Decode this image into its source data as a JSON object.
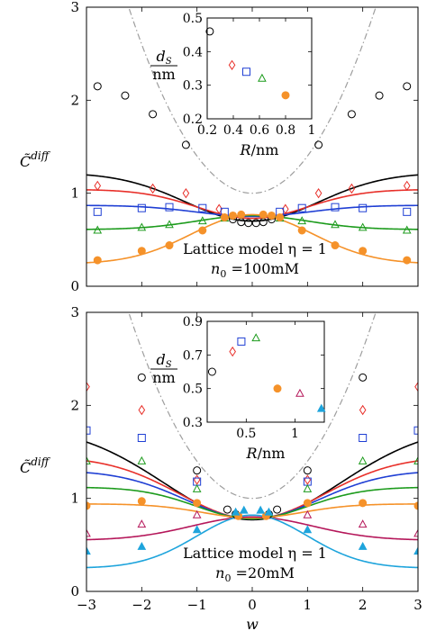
{
  "chart_data": [
    {
      "type": "line",
      "panel": "top",
      "ylabel": "C̃",
      "ylabel_sup": "diff",
      "xlim": [
        -3,
        3
      ],
      "ylim": [
        0,
        3
      ],
      "yticks": [
        "0",
        "1",
        "2",
        "3"
      ],
      "annotation_line1": "Lattice model η = 1",
      "annotation_line2": "n",
      "annotation_line2_sub": "0",
      "annotation_line2_rest": " =100mM",
      "dashdot_curve": {
        "a": 0.4,
        "color": "#9e9e9e"
      },
      "series": [
        {
          "color": "#000000",
          "marker": "circle",
          "center": 0.7,
          "far": 1.22,
          "width": 1.2,
          "points": [
            [
              -2.8,
              2.15
            ],
            [
              -2.3,
              2.05
            ],
            [
              -1.8,
              1.85
            ],
            [
              -1.2,
              1.52
            ],
            [
              -0.35,
              0.72
            ],
            [
              -0.2,
              0.69
            ],
            [
              -0.07,
              0.68
            ],
            [
              0.07,
              0.68
            ],
            [
              0.2,
              0.69
            ],
            [
              0.35,
              0.72
            ],
            [
              1.2,
              1.52
            ],
            [
              1.8,
              1.85
            ],
            [
              2.3,
              2.05
            ],
            [
              2.8,
              2.15
            ]
          ]
        },
        {
          "color": "#e8302a",
          "marker": "diamond",
          "center": 0.73,
          "far": 1.04,
          "width": 1.0,
          "points": [
            [
              -2.8,
              1.08
            ],
            [
              -1.8,
              1.05
            ],
            [
              -1.2,
              1.0
            ],
            [
              -0.6,
              0.83
            ],
            [
              0.6,
              0.83
            ],
            [
              1.2,
              1.0
            ],
            [
              1.8,
              1.05
            ],
            [
              2.8,
              1.08
            ]
          ]
        },
        {
          "color": "#1f3fd4",
          "marker": "square",
          "center": 0.75,
          "far": 0.87,
          "width": 1.0,
          "points": [
            [
              -2.8,
              0.8
            ],
            [
              -2.0,
              0.84
            ],
            [
              -1.5,
              0.85
            ],
            [
              -0.9,
              0.84
            ],
            [
              -0.5,
              0.8
            ],
            [
              0.5,
              0.8
            ],
            [
              0.9,
              0.84
            ],
            [
              1.5,
              0.85
            ],
            [
              2.0,
              0.84
            ],
            [
              2.8,
              0.8
            ]
          ]
        },
        {
          "color": "#1c9b1c",
          "marker": "triangle",
          "center": 0.76,
          "far": 0.61,
          "width": 1.0,
          "points": [
            [
              -2.8,
              0.6
            ],
            [
              -2.0,
              0.63
            ],
            [
              -1.5,
              0.66
            ],
            [
              -0.9,
              0.7
            ],
            [
              -0.5,
              0.73
            ],
            [
              0.5,
              0.73
            ],
            [
              0.9,
              0.7
            ],
            [
              1.5,
              0.66
            ],
            [
              2.0,
              0.63
            ],
            [
              2.8,
              0.6
            ]
          ]
        },
        {
          "color": "#f5922a",
          "marker": "filled-circle",
          "center": 0.77,
          "far": 0.24,
          "width": 1.1,
          "points": [
            [
              -2.8,
              0.28
            ],
            [
              -2.0,
              0.38
            ],
            [
              -1.5,
              0.44
            ],
            [
              -0.9,
              0.6
            ],
            [
              -0.5,
              0.74
            ],
            [
              -0.35,
              0.76
            ],
            [
              -0.2,
              0.77
            ],
            [
              0.2,
              0.77
            ],
            [
              0.35,
              0.76
            ],
            [
              0.5,
              0.74
            ],
            [
              0.9,
              0.6
            ],
            [
              1.5,
              0.44
            ],
            [
              2.0,
              0.38
            ],
            [
              2.8,
              0.28
            ]
          ]
        }
      ],
      "inset": {
        "ylabel_num": "d",
        "ylabel_num_sub": "S",
        "ylabel_den": "nm",
        "xlabel": "R/nm",
        "xlim": [
          0.2,
          1
        ],
        "ylim": [
          0.2,
          0.5
        ],
        "xticks": [
          "0.2",
          "0.4",
          "0.6",
          "0.8",
          "1"
        ],
        "yticks": [
          "0.2",
          "0.3",
          "0.4",
          "0.5"
        ],
        "points": [
          {
            "x": 0.22,
            "y": 0.46,
            "marker": "circle",
            "color": "#000000"
          },
          {
            "x": 0.39,
            "y": 0.36,
            "marker": "diamond",
            "color": "#e8302a"
          },
          {
            "x": 0.5,
            "y": 0.34,
            "marker": "square",
            "color": "#1f3fd4"
          },
          {
            "x": 0.62,
            "y": 0.32,
            "marker": "triangle",
            "color": "#1c9b1c"
          },
          {
            "x": 0.8,
            "y": 0.27,
            "marker": "filled-circle",
            "color": "#f5922a"
          }
        ]
      }
    },
    {
      "type": "line",
      "panel": "bottom",
      "ylabel": "C̃",
      "ylabel_sup": "diff",
      "xlabel": "w",
      "xlim": [
        -3,
        3
      ],
      "ylim": [
        0,
        3
      ],
      "xticks": [
        "−3",
        "−2",
        "−1",
        "0",
        "1",
        "2",
        "3"
      ],
      "yticks": [
        "0",
        "1",
        "2",
        "3"
      ],
      "annotation_line1": "Lattice model η = 1",
      "annotation_line2": "n",
      "annotation_line2_sub": "0",
      "annotation_line2_rest": " =20mM",
      "dashdot_curve": {
        "a": 0.4,
        "color": "#9e9e9e"
      },
      "series": [
        {
          "color": "#000000",
          "marker": "circle",
          "center": 0.77,
          "far": 1.78,
          "width": 1.6,
          "points": [
            [
              -2.0,
              2.3
            ],
            [
              -1.0,
              1.3
            ],
            [
              -0.45,
              0.88
            ],
            [
              -0.3,
              0.83
            ],
            [
              0.3,
              0.83
            ],
            [
              0.45,
              0.88
            ],
            [
              1.0,
              1.3
            ],
            [
              2.0,
              2.3
            ]
          ]
        },
        {
          "color": "#e8302a",
          "marker": "diamond",
          "center": 0.78,
          "far": 1.45,
          "width": 1.3,
          "points": [
            [
              -3.0,
              2.2
            ],
            [
              -2.0,
              1.95
            ],
            [
              -1.0,
              1.2
            ],
            [
              1.0,
              1.2
            ],
            [
              2.0,
              1.95
            ],
            [
              3.0,
              2.2
            ]
          ]
        },
        {
          "color": "#1f3fd4",
          "marker": "square",
          "center": 0.78,
          "far": 1.3,
          "width": 1.2,
          "points": [
            [
              -3.0,
              1.73
            ],
            [
              -2.0,
              1.65
            ],
            [
              -1.0,
              1.18
            ],
            [
              1.0,
              1.18
            ],
            [
              2.0,
              1.65
            ],
            [
              3.0,
              1.73
            ]
          ]
        },
        {
          "color": "#1c9b1c",
          "marker": "triangle",
          "center": 0.78,
          "far": 1.12,
          "width": 1.0,
          "points": [
            [
              -3.0,
              1.4
            ],
            [
              -2.0,
              1.4
            ],
            [
              -1.0,
              1.1
            ],
            [
              -0.3,
              0.84
            ],
            [
              0.3,
              0.84
            ],
            [
              1.0,
              1.1
            ],
            [
              2.0,
              1.4
            ],
            [
              3.0,
              1.4
            ]
          ]
        },
        {
          "color": "#f5922a",
          "marker": "filled-circle",
          "center": 0.79,
          "far": 0.94,
          "width": 0.9,
          "points": [
            [
              -3.0,
              0.92
            ],
            [
              -2.0,
              0.97
            ],
            [
              -1.0,
              0.95
            ],
            [
              -0.25,
              0.81
            ],
            [
              0.25,
              0.81
            ],
            [
              1.0,
              0.95
            ],
            [
              2.0,
              0.95
            ],
            [
              3.0,
              0.92
            ]
          ]
        },
        {
          "color": "#b5175a",
          "marker": "triangle",
          "center": 0.8,
          "far": 0.55,
          "width": 1.1,
          "points": [
            [
              -3.0,
              0.62
            ],
            [
              -2.0,
              0.72
            ],
            [
              -1.0,
              0.82
            ],
            [
              1.0,
              0.82
            ],
            [
              2.0,
              0.72
            ],
            [
              3.0,
              0.62
            ]
          ]
        },
        {
          "color": "#1ea4dc",
          "marker": "filled-triangle",
          "center": 0.82,
          "far": 0.25,
          "width": 1.0,
          "points": [
            [
              -3.0,
              0.43
            ],
            [
              -2.0,
              0.48
            ],
            [
              -1.0,
              0.66
            ],
            [
              -0.3,
              0.85
            ],
            [
              -0.15,
              0.87
            ],
            [
              0.15,
              0.87
            ],
            [
              0.3,
              0.85
            ],
            [
              1.0,
              0.66
            ],
            [
              2.0,
              0.48
            ],
            [
              3.0,
              0.43
            ]
          ]
        }
      ],
      "inset": {
        "ylabel_num": "d",
        "ylabel_num_sub": "S",
        "ylabel_den": "nm",
        "xlabel": "R/nm",
        "xlim": [
          0.1,
          1.3
        ],
        "ylim": [
          0.3,
          0.9
        ],
        "xticks": [
          "0.5",
          "1"
        ],
        "xtick_values": [
          0.5,
          1.0
        ],
        "yticks": [
          "0.3",
          "0.5",
          "0.7",
          "0.9"
        ],
        "points": [
          {
            "x": 0.15,
            "y": 0.6,
            "marker": "circle",
            "color": "#000000"
          },
          {
            "x": 0.36,
            "y": 0.72,
            "marker": "diamond",
            "color": "#e8302a"
          },
          {
            "x": 0.45,
            "y": 0.78,
            "marker": "square",
            "color": "#1f3fd4"
          },
          {
            "x": 0.6,
            "y": 0.8,
            "marker": "triangle",
            "color": "#1c9b1c"
          },
          {
            "x": 0.82,
            "y": 0.5,
            "marker": "filled-circle",
            "color": "#f5922a"
          },
          {
            "x": 1.05,
            "y": 0.47,
            "marker": "triangle",
            "color": "#b5175a"
          },
          {
            "x": 1.27,
            "y": 0.38,
            "marker": "filled-triangle",
            "color": "#1ea4dc"
          }
        ]
      }
    }
  ]
}
